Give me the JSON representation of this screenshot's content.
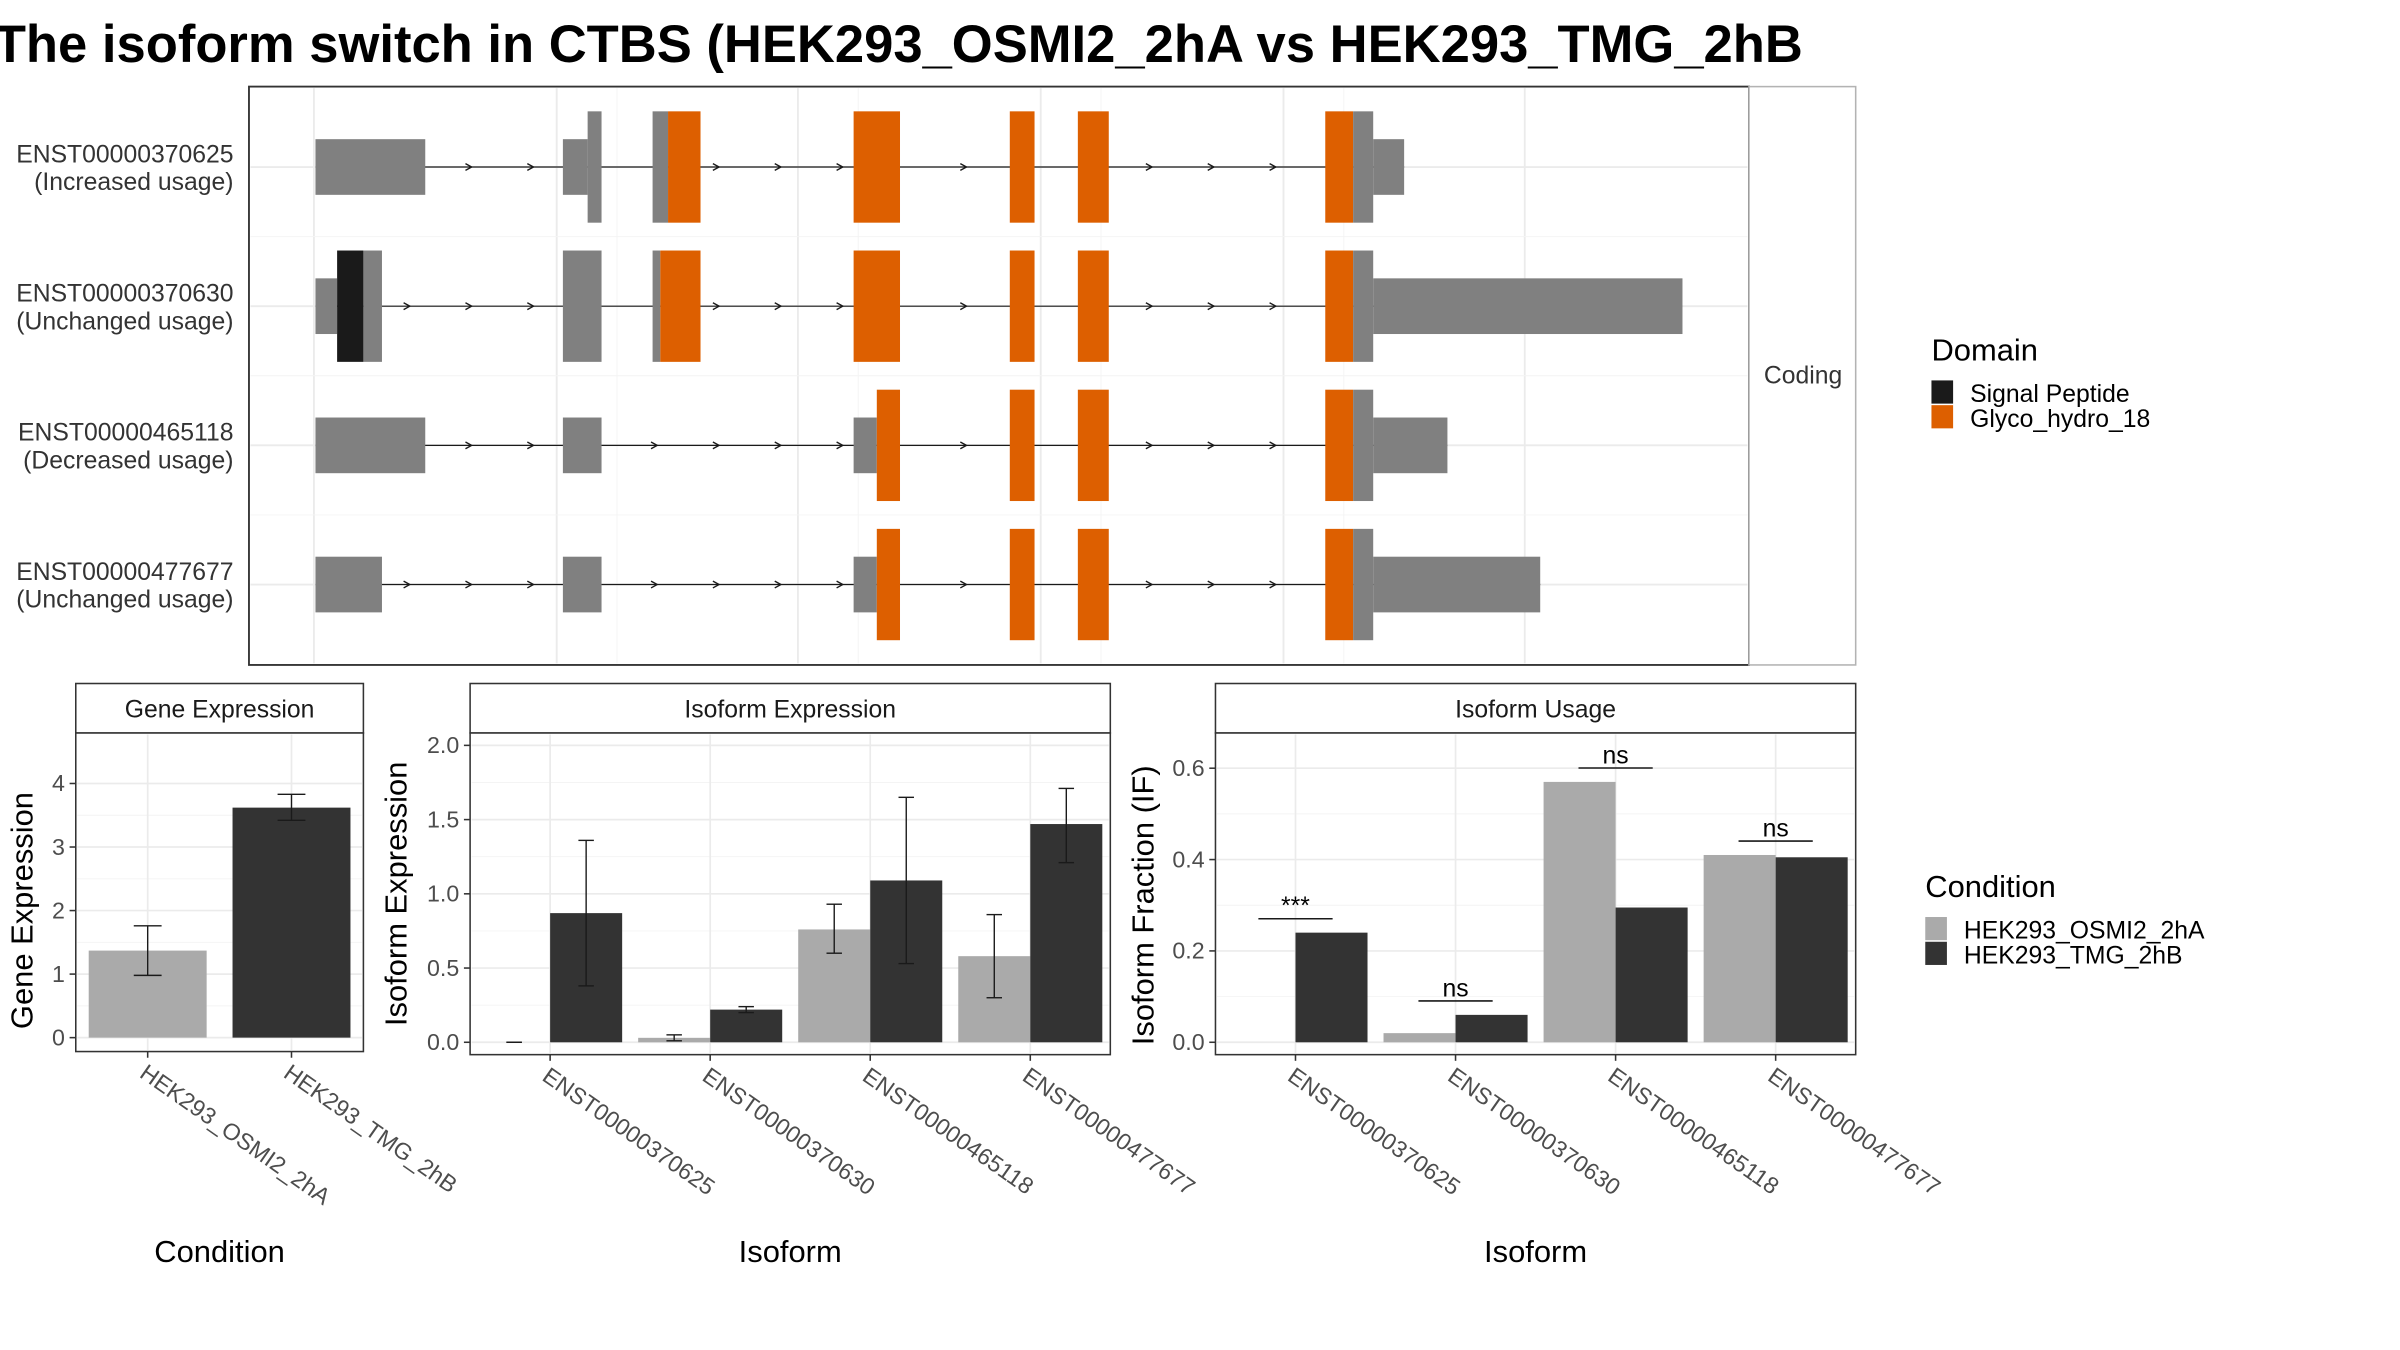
{
  "title": "The isoform switch in CTBS (HEK293_OSMI2_2hA vs HEK293_TMG_2hB",
  "colors": {
    "exon": "#808080",
    "signal_peptide": "#1a1a1a",
    "glyco_hydro_18": "#dd5f00",
    "condition_a": "#aaaaaa",
    "condition_b": "#333333"
  },
  "chart_data": [
    {
      "type": "transcript_structure",
      "facet_label": "Coding",
      "isoforms": [
        {
          "id": "ENST00000370625",
          "label": "ENST00000370625",
          "usage": "(Increased usage)"
        },
        {
          "id": "ENST00000370630",
          "label": "ENST00000370630",
          "usage": "(Unchanged usage)"
        },
        {
          "id": "ENST00000465118",
          "label": "ENST00000465118",
          "usage": "(Decreased usage)"
        },
        {
          "id": "ENST00000477677",
          "label": "ENST00000477677",
          "usage": "(Unchanged usage)"
        }
      ],
      "legend": {
        "title": "Domain",
        "items": [
          {
            "name": "Signal Peptide",
            "color": "#1a1a1a"
          },
          {
            "name": "Glyco_hydro_18",
            "color": "#dd5f00"
          }
        ]
      }
    },
    {
      "type": "bar",
      "title": "Gene Expression",
      "xlabel": "Condition",
      "ylabel": "Gene Expression",
      "ylim": [
        0,
        4.6
      ],
      "yticks": [
        0,
        1,
        2,
        3,
        4
      ],
      "categories": [
        "HEK293_OSMI2_2hA",
        "HEK293_TMG_2hB"
      ],
      "values": [
        1.37,
        3.62
      ],
      "error_low": [
        0.98,
        3.42
      ],
      "error_high": [
        1.76,
        3.83
      ]
    },
    {
      "type": "bar",
      "title": "Isoform Expression",
      "xlabel": "Isoform",
      "ylabel": "Isoform Expression",
      "ylim": [
        0,
        2.0
      ],
      "yticks": [
        0.0,
        0.5,
        1.0,
        1.5,
        2.0
      ],
      "categories": [
        "ENST00000370625",
        "ENST00000370630",
        "ENST00000465118",
        "ENST00000477677"
      ],
      "series": [
        {
          "name": "HEK293_OSMI2_2hA",
          "values": [
            0.0,
            0.03,
            0.76,
            0.58
          ],
          "error_low": [
            0.0,
            0.01,
            0.6,
            0.3
          ],
          "error_high": [
            0.0,
            0.05,
            0.93,
            0.86
          ]
        },
        {
          "name": "HEK293_TMG_2hB",
          "values": [
            0.87,
            0.22,
            1.09,
            1.47
          ],
          "error_low": [
            0.38,
            0.2,
            0.53,
            1.21
          ],
          "error_high": [
            1.36,
            0.24,
            1.65,
            1.71
          ]
        }
      ]
    },
    {
      "type": "bar",
      "title": "Isoform Usage",
      "xlabel": "Isoform",
      "ylabel": "Isoform Fraction (IF)",
      "ylim": [
        0,
        0.65
      ],
      "yticks": [
        0.0,
        0.2,
        0.4,
        0.6
      ],
      "categories": [
        "ENST00000370625",
        "ENST00000370630",
        "ENST00000465118",
        "ENST00000477677"
      ],
      "series": [
        {
          "name": "HEK293_OSMI2_2hA",
          "values": [
            0.0,
            0.02,
            0.57,
            0.41
          ]
        },
        {
          "name": "HEK293_TMG_2hB",
          "values": [
            0.24,
            0.06,
            0.295,
            0.405
          ]
        }
      ],
      "significance": [
        "***",
        "ns",
        "ns",
        "ns"
      ]
    }
  ],
  "condition_legend": {
    "title": "Condition",
    "items": [
      {
        "name": "HEK293_OSMI2_2hA",
        "color": "#aaaaaa"
      },
      {
        "name": "HEK293_TMG_2hB",
        "color": "#333333"
      }
    ]
  }
}
